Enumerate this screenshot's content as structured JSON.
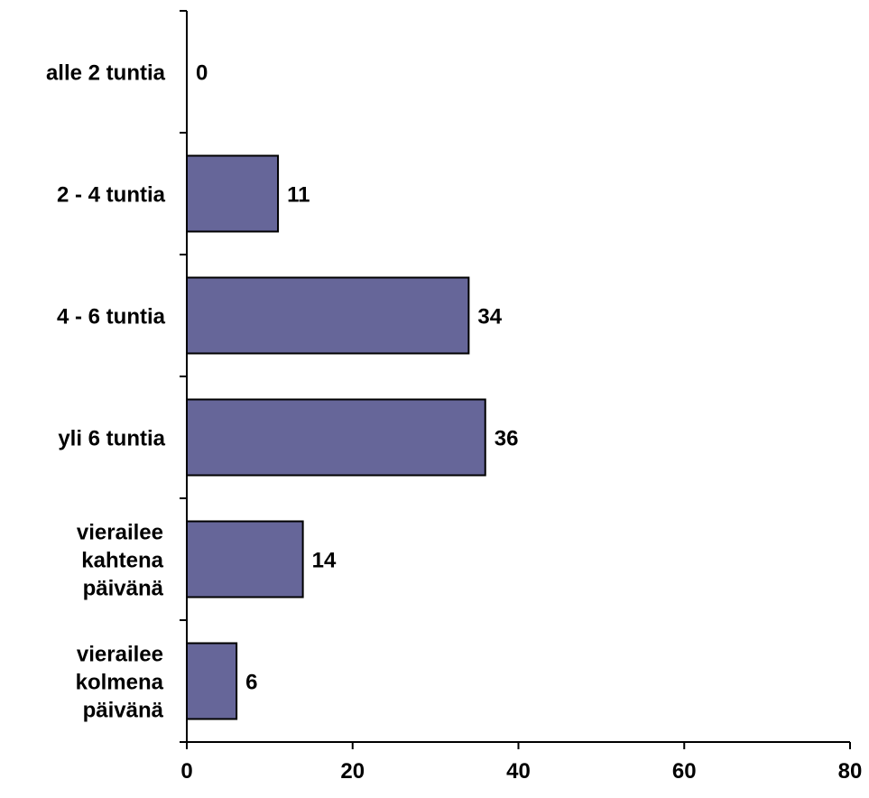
{
  "chart_data": {
    "type": "bar",
    "orientation": "horizontal",
    "categories": [
      [
        "alle 2 tuntia"
      ],
      [
        "2 - 4 tuntia"
      ],
      [
        "4 - 6 tuntia"
      ],
      [
        "yli 6 tuntia"
      ],
      [
        "vierailee",
        "kahtena",
        "päivänä"
      ],
      [
        "vierailee",
        "kolmena",
        "päivänä"
      ]
    ],
    "values": [
      0,
      11,
      34,
      36,
      14,
      6
    ],
    "data_labels": [
      "0",
      "11",
      "34",
      "36",
      "14",
      "6"
    ],
    "xlim": [
      0,
      80
    ],
    "x_ticks": [
      0,
      20,
      40,
      60,
      80
    ],
    "x_tick_labels": [
      "0",
      "20",
      "40",
      "60",
      "80"
    ],
    "title": "",
    "xlabel": "",
    "ylabel": "",
    "grid": false,
    "legend": "none",
    "bar_color": "#666699",
    "bar_edge_color": "#000000"
  }
}
